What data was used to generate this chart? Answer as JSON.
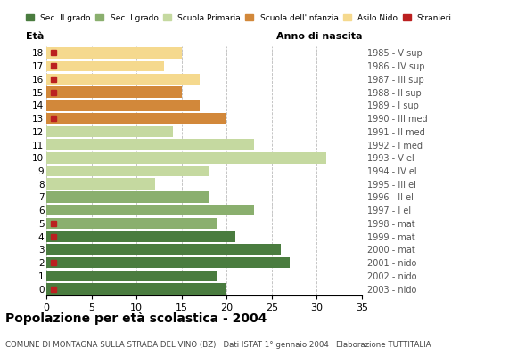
{
  "title": "Popolazione per età scolastica - 2004",
  "subtitle": "COMUNE DI MONTAGNA SULLA STRADA DEL VINO (BZ) · Dati ISTAT 1° gennaio 2004 · Elaborazione TUTTITALIA",
  "ages": [
    18,
    17,
    16,
    15,
    14,
    13,
    12,
    11,
    10,
    9,
    8,
    7,
    6,
    5,
    4,
    3,
    2,
    1,
    0
  ],
  "anno_nascita": [
    "1985 - V sup",
    "1986 - IV sup",
    "1987 - III sup",
    "1988 - II sup",
    "1989 - I sup",
    "1990 - III med",
    "1991 - II med",
    "1992 - I med",
    "1993 - V el",
    "1994 - IV el",
    "1995 - III el",
    "1996 - II el",
    "1997 - I el",
    "1998 - mat",
    "1999 - mat",
    "2000 - mat",
    "2001 - nido",
    "2002 - nido",
    "2003 - nido"
  ],
  "values": [
    20,
    19,
    27,
    26,
    21,
    19,
    23,
    18,
    12,
    18,
    31,
    23,
    14,
    20,
    17,
    15,
    17,
    13,
    15
  ],
  "stranieri": [
    1,
    0,
    1,
    0,
    1,
    1,
    0,
    0,
    0,
    0,
    0,
    0,
    0,
    1,
    0,
    1,
    1,
    1,
    1
  ],
  "colors": {
    "sec2": "#4a7c3f",
    "sec1": "#8aaf6e",
    "primaria": "#c5d9a0",
    "infanzia": "#d2883a",
    "nido": "#f5d98e",
    "stranieri": "#bb2020"
  },
  "legend_labels": [
    "Sec. II grado",
    "Sec. I grado",
    "Scuola Primaria",
    "Scuola dell'Infanzia",
    "Asilo Nido",
    "Stranieri"
  ],
  "xlim": [
    0,
    35
  ],
  "xticks": [
    0,
    5,
    10,
    15,
    20,
    25,
    30,
    35
  ],
  "bar_height": 0.85,
  "fig_bg": "#ffffff",
  "grid_color": "#aaaaaa"
}
